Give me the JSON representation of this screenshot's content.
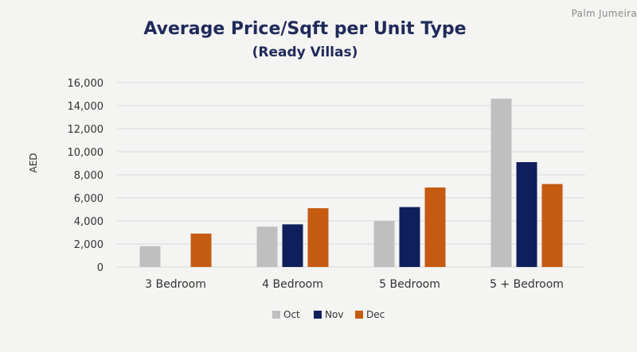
{
  "corner_label": "Palm Jumeira",
  "chart_data": {
    "type": "bar",
    "title": "Average Price/Sqft per Unit Type",
    "subtitle": "(Ready Villas)",
    "xlabel": "",
    "ylabel": "AED",
    "ylim": [
      0,
      16000
    ],
    "yticks": [
      0,
      2000,
      4000,
      6000,
      8000,
      10000,
      12000,
      14000,
      16000
    ],
    "ytick_labels": [
      "0",
      "2,000",
      "4,000",
      "6,000",
      "8,000",
      "10,000",
      "12,000",
      "14,000",
      "16,000"
    ],
    "grid": true,
    "legend_position": "bottom",
    "categories": [
      "3 Bedroom",
      "4 Bedroom",
      "5 Bedroom",
      "5 + Bedroom"
    ],
    "series": [
      {
        "name": "Oct",
        "color": "#bfbfbf",
        "values": [
          1800,
          3500,
          4000,
          14600
        ]
      },
      {
        "name": "Nov",
        "color": "#0f1f5c",
        "values": [
          null,
          3700,
          5200,
          9100
        ]
      },
      {
        "name": "Dec",
        "color": "#c55a11",
        "values": [
          2900,
          5100,
          6900,
          7200
        ]
      }
    ]
  }
}
